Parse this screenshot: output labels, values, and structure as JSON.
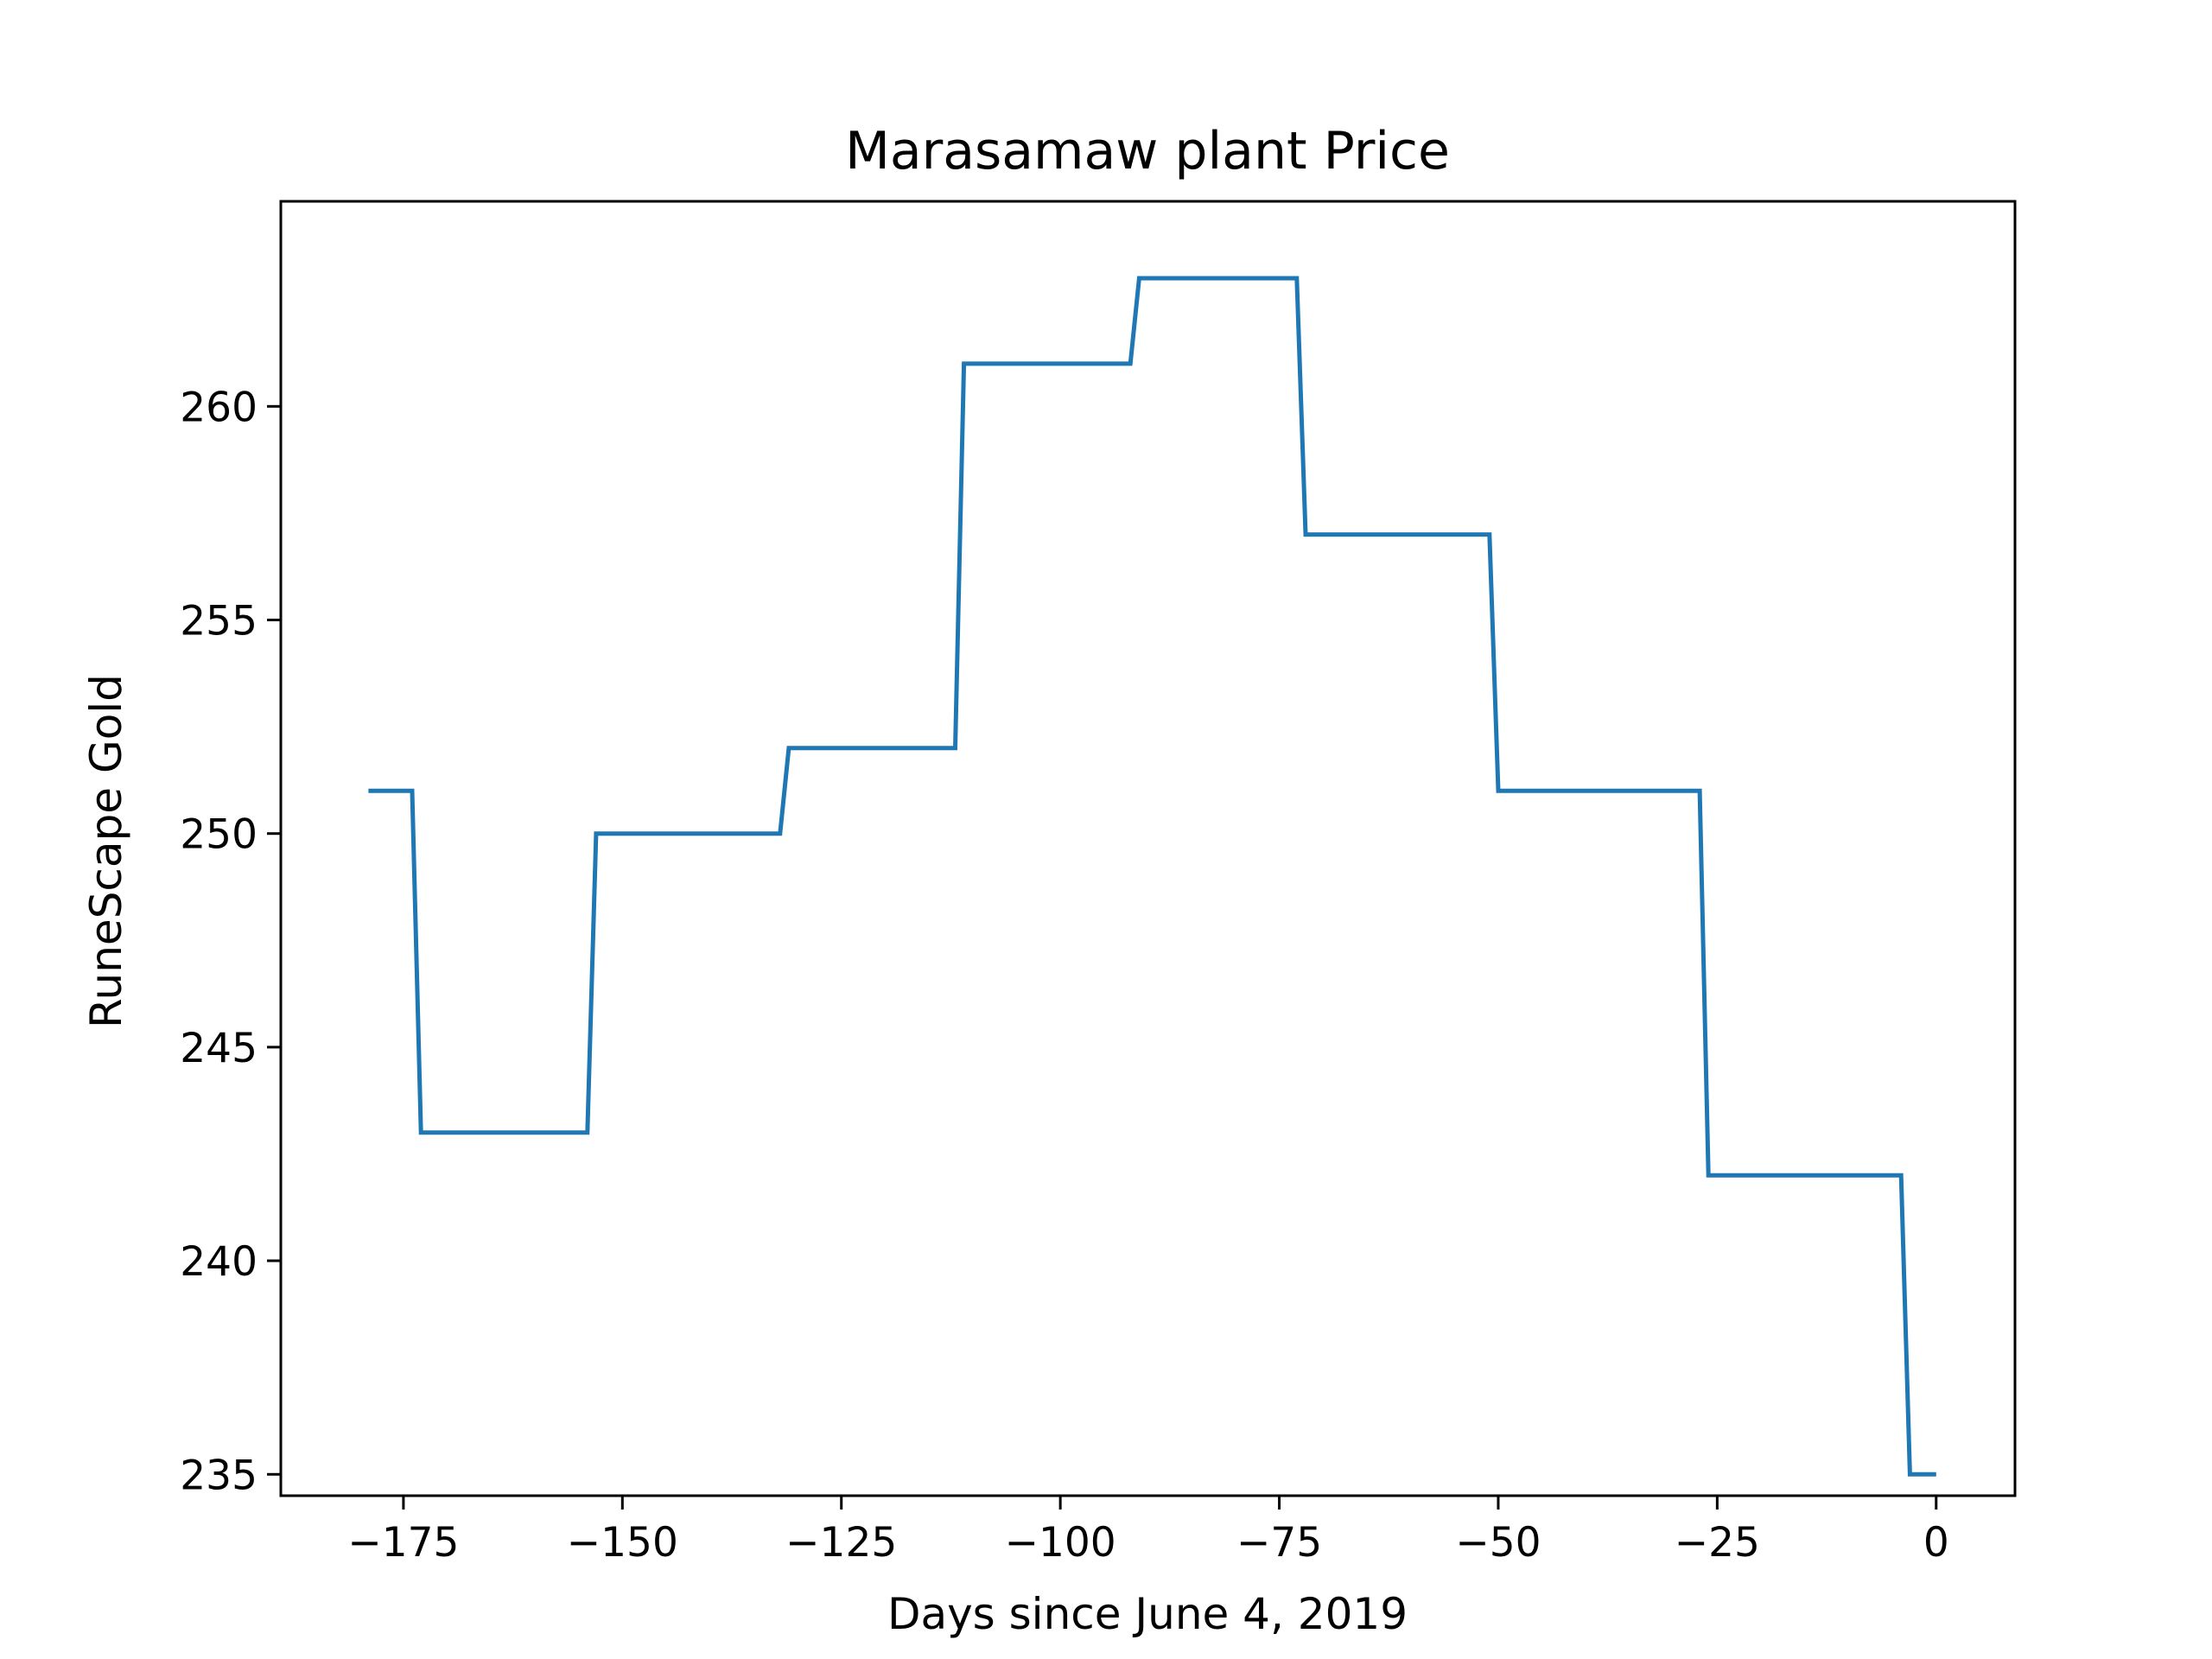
{
  "chart_data": {
    "type": "line",
    "title": "Marasamaw plant Price",
    "xlabel": "Days since June 4, 2019",
    "ylabel": "RuneScape Gold",
    "xlim": [
      -189,
      9
    ],
    "ylim": [
      234.5,
      264.8
    ],
    "x_ticks": [
      -175,
      -150,
      -125,
      -100,
      -75,
      -50,
      -25,
      0
    ],
    "x_tick_labels": [
      "−175",
      "−150",
      "−125",
      "−100",
      "−75",
      "−50",
      "−25",
      "0"
    ],
    "y_ticks": [
      235,
      240,
      245,
      250,
      255,
      260
    ],
    "y_tick_labels": [
      "235",
      "240",
      "245",
      "250",
      "255",
      "260"
    ],
    "grid": false,
    "colors": {
      "line": "#1f77b4",
      "axes": "#000000",
      "background": "#ffffff"
    },
    "series": [
      {
        "x": [
          -179,
          -174,
          -173,
          -154,
          -153,
          -132,
          -131,
          -112,
          -111,
          -92,
          -91,
          -73,
          -72,
          -51,
          -50,
          -27,
          -26,
          -4,
          -3,
          0
        ],
        "y": [
          251,
          251,
          243,
          243,
          250,
          250,
          252,
          252,
          261,
          261,
          263,
          263,
          257,
          257,
          251,
          251,
          242,
          242,
          235,
          235
        ]
      }
    ]
  }
}
